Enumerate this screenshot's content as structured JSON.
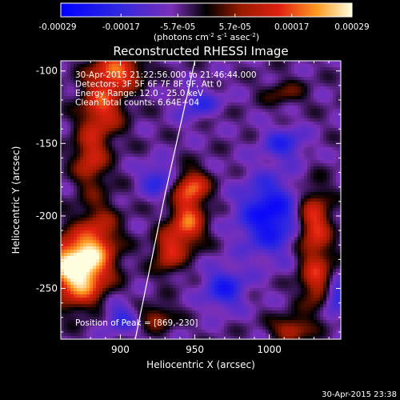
{
  "chart_data": {
    "type": "heatmap",
    "title": "Reconstructed RHESSI Image",
    "xlabel": "Heliocentric X (arcsec)",
    "ylabel": "Heliocentric Y (arcsec)",
    "xlim": [
      860,
      1048
    ],
    "ylim": [
      -285,
      -93
    ],
    "xticks": [
      900,
      950,
      1000
    ],
    "yticks": [
      -100,
      -150,
      -200,
      -250
    ],
    "colorbar": {
      "ticks": [
        "-0.00029",
        "-0.00017",
        "-5.7e-05",
        "5.7e-05",
        "0.00017",
        "0.00029"
      ],
      "values": [
        -0.00029,
        -0.00017,
        -5.7e-05,
        5.7e-05,
        0.00017,
        0.00029
      ],
      "range": [
        -0.00029,
        0.00029
      ],
      "unit_label": "(photons cm",
      "unit_sup1": "-2",
      "unit_mid": " s",
      "unit_sup2": "-1",
      "unit_mid2": " asec",
      "unit_sup3": "-2",
      "unit_end": ")"
    },
    "annotations": [
      "30-Apr-2015 21:22:56.000 to 21:46:44.000",
      "Detectors: 3F 5F 6F 7F 8F 9F, Att 0",
      "Energy Range: 12.0 - 25.0 keV",
      "Clean     Total counts: 6.64E+04"
    ],
    "peak_label": "Position of Peak = [869,-230]",
    "peak": [
      869,
      -230
    ],
    "limb_line": [
      [
        910,
        -285
      ],
      [
        930,
        -185
      ],
      [
        950,
        -93
      ]
    ],
    "sources": [
      {
        "x": 869,
        "y": -230,
        "rx": 14,
        "ry": 12,
        "amp": 1.0
      },
      {
        "x": 872,
        "y": -248,
        "rx": 12,
        "ry": 12,
        "amp": 0.7
      },
      {
        "x": 885,
        "y": -215,
        "rx": 10,
        "ry": 18,
        "amp": 0.55
      },
      {
        "x": 898,
        "y": -100,
        "rx": 12,
        "ry": 9,
        "amp": 0.75
      },
      {
        "x": 888,
        "y": -125,
        "rx": 10,
        "ry": 14,
        "amp": 0.7
      },
      {
        "x": 880,
        "y": -160,
        "rx": 8,
        "ry": 14,
        "amp": 0.6
      },
      {
        "x": 948,
        "y": -180,
        "rx": 8,
        "ry": 8,
        "amp": 0.75
      },
      {
        "x": 945,
        "y": -205,
        "rx": 8,
        "ry": 12,
        "amp": 0.8
      },
      {
        "x": 932,
        "y": -225,
        "rx": 7,
        "ry": 10,
        "amp": 0.6
      },
      {
        "x": 1030,
        "y": -205,
        "rx": 8,
        "ry": 16,
        "amp": 0.75
      },
      {
        "x": 1032,
        "y": -245,
        "rx": 8,
        "ry": 14,
        "amp": 0.6
      },
      {
        "x": 1015,
        "y": -278,
        "rx": 9,
        "ry": 6,
        "amp": 0.55
      },
      {
        "x": 925,
        "y": -270,
        "rx": 8,
        "ry": 6,
        "amp": 0.45
      },
      {
        "x": 1010,
        "y": -115,
        "rx": 10,
        "ry": 6,
        "amp": 0.3
      },
      {
        "x": 960,
        "y": -130,
        "rx": 8,
        "ry": 6,
        "amp": 0.25
      },
      {
        "x": 1000,
        "y": -200,
        "rx": 14,
        "ry": 18,
        "amp": -0.75
      },
      {
        "x": 970,
        "y": -250,
        "rx": 10,
        "ry": 10,
        "amp": -0.55
      },
      {
        "x": 955,
        "y": -125,
        "rx": 10,
        "ry": 8,
        "amp": -0.5
      },
      {
        "x": 1010,
        "y": -150,
        "rx": 10,
        "ry": 8,
        "amp": -0.45
      },
      {
        "x": 925,
        "y": -175,
        "rx": 8,
        "ry": 8,
        "amp": -0.45
      },
      {
        "x": 1045,
        "y": -255,
        "rx": 6,
        "ry": 8,
        "amp": -0.6
      },
      {
        "x": 900,
        "y": -270,
        "rx": 8,
        "ry": 8,
        "amp": -0.4
      }
    ]
  },
  "footer": {
    "timestamp": "30-Apr-2015 23:38"
  }
}
